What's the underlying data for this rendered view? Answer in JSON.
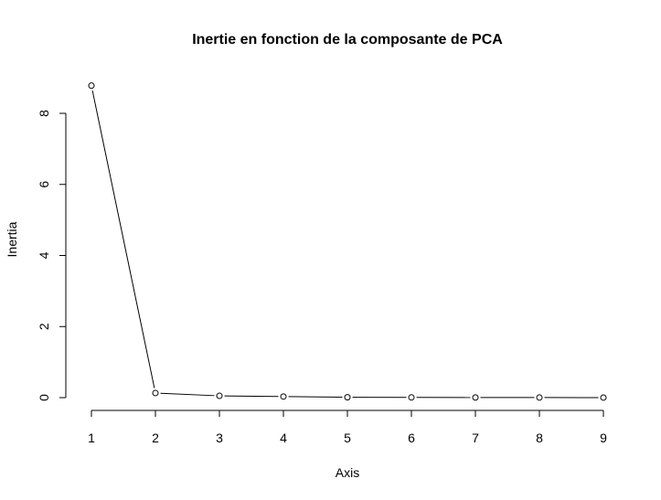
{
  "chart_data": {
    "type": "line",
    "title": "Inertie en fonction de la composante de PCA",
    "xlabel": "Axis",
    "ylabel": "Inertia",
    "x": [
      1,
      2,
      3,
      4,
      5,
      6,
      7,
      8,
      9
    ],
    "series": [
      {
        "values": [
          8.78,
          0.13,
          0.05,
          0.03,
          0.01,
          0.005,
          0.003,
          0.002,
          0.001
        ]
      }
    ],
    "xticks": [
      "1",
      "2",
      "3",
      "4",
      "5",
      "6",
      "7",
      "8",
      "9"
    ],
    "yticks": [
      "0",
      "2",
      "4",
      "6",
      "8"
    ],
    "xlim": [
      1,
      9
    ],
    "ylim": [
      0,
      8
    ],
    "grid": false,
    "marker": "open-circle",
    "colors": {
      "line": "#000000",
      "marker_fill": "#ffffff"
    }
  }
}
